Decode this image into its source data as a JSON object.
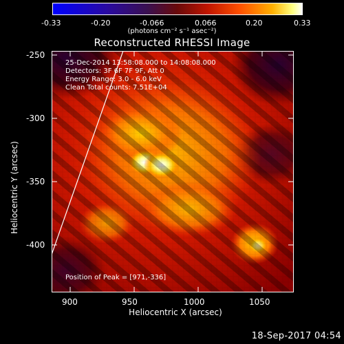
{
  "colorbar": {
    "ticks": [
      "-0.33",
      "-0.20",
      "-0.066",
      "0.066",
      "0.20",
      "0.33"
    ],
    "units": "(photons cm⁻² s⁻¹ asec⁻²)"
  },
  "title": "Reconstructed RHESSI Image",
  "info": {
    "time_range": "25-Dec-2014 13:58:08.000 to 14:08:08.000",
    "detectors": "Detectors: 3F 6F 7F 9F, Att 0",
    "energy": "Energy Range: 3.0 - 6.0 keV",
    "method": "Clean     Total counts: 7.51E+04",
    "peak": "Position of Peak = [971,-336]"
  },
  "axes": {
    "xlabel": "Heliocentric X (arcsec)",
    "ylabel": "Heliocentric Y (arcsec)",
    "x_ticks": [
      "900",
      "950",
      "1000",
      "1050"
    ],
    "y_ticks": [
      "-250",
      "-300",
      "-350",
      "-400"
    ]
  },
  "footer": "18-Sep-2017 04:54",
  "colors": {
    "background": "#000000",
    "frame": "#ffffff",
    "limb": "#ffffff"
  }
}
